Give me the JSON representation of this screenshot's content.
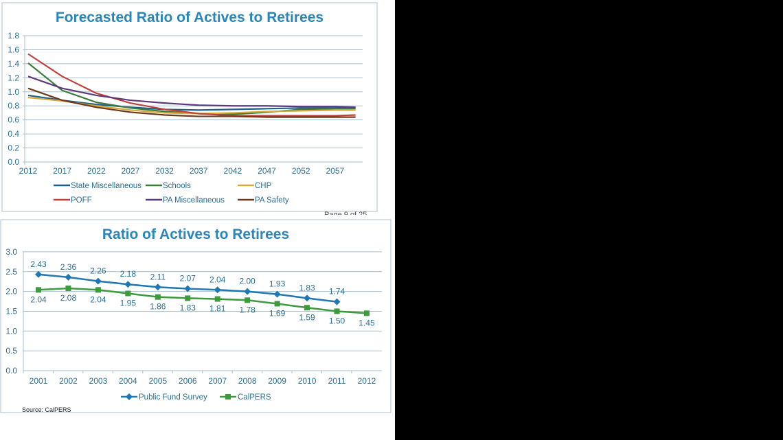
{
  "page_number_fragment": "Page 9 of 25",
  "source": "Source: CalPERS",
  "chart_data": [
    {
      "type": "line",
      "title": "Forecasted Ratio of Actives to Retirees",
      "xlabel": "",
      "ylabel": "",
      "ylim": [
        0,
        1.8
      ],
      "yticks": [
        "0.0",
        "0.2",
        "0.4",
        "0.6",
        "0.8",
        "1.0",
        "1.2",
        "1.4",
        "1.6",
        "1.8"
      ],
      "xticks": [
        "2012",
        "2017",
        "2022",
        "2027",
        "2032",
        "2037",
        "2042",
        "2047",
        "2052",
        "2057"
      ],
      "x": [
        2012,
        2017,
        2022,
        2027,
        2032,
        2037,
        2042,
        2047,
        2052,
        2057,
        2060
      ],
      "grid": true,
      "legend": "bottom",
      "series": [
        {
          "name": "State Miscellaneous",
          "color": "#1f5f8b",
          "values": [
            0.95,
            0.88,
            0.82,
            0.78,
            0.75,
            0.74,
            0.75,
            0.76,
            0.77,
            0.77,
            0.77
          ]
        },
        {
          "name": "Schools",
          "color": "#3a7d3a",
          "values": [
            1.41,
            1.02,
            0.85,
            0.77,
            0.72,
            0.69,
            0.68,
            0.71,
            0.75,
            0.76,
            0.76
          ]
        },
        {
          "name": "CHP",
          "color": "#d9a93a",
          "values": [
            0.92,
            0.87,
            0.8,
            0.74,
            0.7,
            0.69,
            0.7,
            0.72,
            0.73,
            0.74,
            0.74
          ]
        },
        {
          "name": "POFF",
          "color": "#c0413b",
          "values": [
            1.54,
            1.22,
            0.98,
            0.84,
            0.75,
            0.69,
            0.66,
            0.66,
            0.66,
            0.66,
            0.67
          ]
        },
        {
          "name": "PA Miscellaneous",
          "color": "#5b3a7d",
          "values": [
            1.22,
            1.05,
            0.95,
            0.88,
            0.84,
            0.81,
            0.8,
            0.8,
            0.79,
            0.79,
            0.78
          ]
        },
        {
          "name": "PA Safety",
          "color": "#6b3a1f",
          "values": [
            1.05,
            0.88,
            0.78,
            0.71,
            0.67,
            0.65,
            0.65,
            0.64,
            0.64,
            0.64,
            0.64
          ]
        }
      ]
    },
    {
      "type": "line",
      "title": "Ratio of Actives to Retirees",
      "xlabel": "",
      "ylabel": "",
      "ylim": [
        0,
        3.0
      ],
      "yticks": [
        "0.0",
        "0.5",
        "1.0",
        "1.5",
        "2.0",
        "2.5",
        "3.0"
      ],
      "categories": [
        "2001",
        "2002",
        "2003",
        "2004",
        "2005",
        "2006",
        "2007",
        "2008",
        "2009",
        "2010",
        "2011",
        "2012"
      ],
      "grid": true,
      "legend": "bottom",
      "series": [
        {
          "name": "Public Fund Survey",
          "color": "#1f78b4",
          "marker": "diamond",
          "values": [
            2.43,
            2.36,
            2.26,
            2.18,
            2.11,
            2.07,
            2.04,
            2.0,
            1.93,
            1.83,
            1.74,
            null
          ],
          "labels": [
            "2.43",
            "2.36",
            "2.26",
            "2.18",
            "2.11",
            "2.07",
            "2.04",
            "2.00",
            "1.93",
            "1.83",
            "1.74",
            null
          ]
        },
        {
          "name": "CalPERS",
          "color": "#3d9a3d",
          "marker": "square",
          "values": [
            2.04,
            2.08,
            2.04,
            1.95,
            1.86,
            1.83,
            1.81,
            1.78,
            1.69,
            1.59,
            1.5,
            1.45
          ],
          "labels": [
            "2.04",
            "2.08",
            "2.04",
            "1.95",
            "1.86",
            "1.83",
            "1.81",
            "1.78",
            "1.69",
            "1.59",
            "1.50",
            "1.45"
          ]
        }
      ]
    }
  ]
}
